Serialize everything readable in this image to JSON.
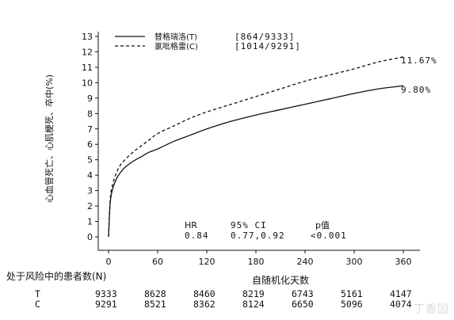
{
  "chart_data": {
    "type": "line",
    "ylabel": "心血管死亡、心肌梗死、卒中(%)",
    "xlabel": "自随机化天数",
    "ylim": [
      0,
      13
    ],
    "xlim": [
      0,
      360
    ],
    "yticks": [
      0,
      1,
      2,
      3,
      4,
      5,
      6,
      7,
      8,
      9,
      10,
      11,
      12,
      13
    ],
    "xticks": [
      0,
      60,
      120,
      180,
      240,
      300,
      360
    ],
    "grid": false,
    "legend_position": "top-left",
    "series": [
      {
        "name": "替格瑞洛(T)",
        "legend_count": "[864/9333]",
        "line_style": "solid",
        "end_label": "9.80%",
        "x": [
          0,
          2,
          5,
          10,
          15,
          20,
          30,
          40,
          50,
          60,
          80,
          100,
          120,
          150,
          180,
          210,
          240,
          270,
          300,
          330,
          360
        ],
        "y": [
          0,
          2.2,
          3.1,
          3.8,
          4.2,
          4.5,
          4.9,
          5.2,
          5.5,
          5.7,
          6.2,
          6.6,
          7.0,
          7.5,
          7.9,
          8.25,
          8.6,
          8.95,
          9.3,
          9.6,
          9.8
        ]
      },
      {
        "name": "氯吡格雷(C)",
        "legend_count": "[1014/9291]",
        "line_style": "dashed",
        "end_label": "11.67%",
        "x": [
          0,
          2,
          5,
          10,
          15,
          20,
          30,
          40,
          50,
          60,
          80,
          100,
          120,
          150,
          180,
          210,
          240,
          270,
          300,
          330,
          360
        ],
        "y": [
          0,
          2.4,
          3.4,
          4.2,
          4.7,
          5.0,
          5.5,
          5.9,
          6.3,
          6.7,
          7.2,
          7.7,
          8.1,
          8.6,
          9.1,
          9.6,
          10.1,
          10.5,
          10.9,
          11.35,
          11.67
        ]
      }
    ],
    "stats": {
      "headers": [
        "HR",
        "95% CI",
        "p值"
      ],
      "values": [
        "0.84",
        "0.77,0.92",
        "<0.001"
      ]
    }
  },
  "risk_table": {
    "title": "处于风险中的患者数(N)",
    "rows": [
      {
        "label": "T",
        "values": [
          "9333",
          "8628",
          "8460",
          "8219",
          "6743",
          "5161",
          "4147"
        ]
      },
      {
        "label": "C",
        "values": [
          "9291",
          "8521",
          "8362",
          "8124",
          "6650",
          "5096",
          "4074"
        ]
      }
    ]
  },
  "watermark": "丁香园"
}
